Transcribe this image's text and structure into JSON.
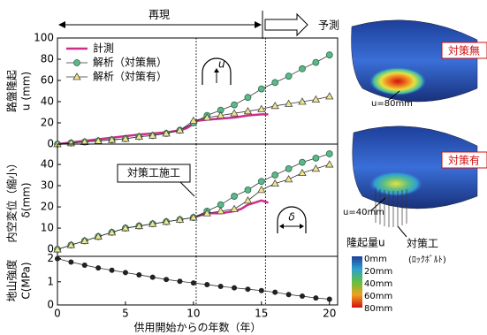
{
  "phase": {
    "reproduce": "再現",
    "predict": "予測"
  },
  "divider_x": [
    10.2,
    15.3
  ],
  "chart_data": [
    {
      "type": "line",
      "ylabel": [
        "路盤隆起",
        "u (mm)"
      ],
      "icon_label": "u",
      "xlim": [
        0,
        20.6
      ],
      "ylim": [
        0,
        100
      ],
      "yticks": [
        0,
        20,
        40,
        60,
        80,
        100
      ],
      "series": [
        {
          "name": "計測",
          "color": "#cc2e8a",
          "marker": "none",
          "x": [
            0,
            2,
            4,
            6,
            8,
            9,
            9.5,
            10,
            10.3,
            11,
            12,
            13,
            14,
            15,
            15.5
          ],
          "values": [
            0,
            3,
            6,
            9,
            11,
            13,
            15,
            19,
            22,
            23,
            24,
            25,
            27,
            28,
            28
          ]
        },
        {
          "name": "解析（対策無）",
          "color": "#5cb88a",
          "marker": "circle",
          "x": [
            0,
            1,
            2,
            3,
            4,
            5,
            6,
            7,
            8,
            9,
            10,
            11,
            12,
            13,
            14,
            15,
            16,
            17,
            18,
            19,
            20
          ],
          "values": [
            0,
            1,
            2,
            3,
            4,
            5,
            7,
            8,
            10,
            13,
            20,
            27,
            32,
            37,
            44,
            52,
            58,
            64,
            71,
            77,
            84
          ]
        },
        {
          "name": "解析（対策有）",
          "color": "#f0e68c",
          "marker": "triangle",
          "x": [
            0,
            1,
            2,
            3,
            4,
            5,
            6,
            7,
            8,
            9,
            10,
            11,
            12,
            13,
            14,
            15,
            16,
            17,
            18,
            19,
            20
          ],
          "values": [
            0,
            1,
            2,
            3,
            4,
            5,
            7,
            8,
            10,
            13,
            22,
            25,
            27,
            29,
            31,
            33,
            36,
            38,
            40,
            42,
            45
          ]
        }
      ]
    },
    {
      "type": "line",
      "ylabel": [
        "内空変位（縮小）",
        "δ(mm)"
      ],
      "icon_label": "δ",
      "annotation": "対策工施工",
      "xlim": [
        0,
        20.6
      ],
      "ylim": [
        -3.3,
        49.6
      ],
      "yticks": [
        0,
        10,
        20,
        30,
        40
      ],
      "series": [
        {
          "color": "#cc2e8a",
          "marker": "none",
          "x": [
            10,
            11,
            12,
            13,
            13.5,
            14,
            14.5,
            15,
            15.5
          ],
          "values": [
            15,
            17,
            17,
            18,
            19,
            21,
            22,
            23,
            22
          ]
        },
        {
          "color": "#5cb88a",
          "marker": "circle",
          "x": [
            0,
            1,
            2,
            3,
            4,
            5,
            6,
            7,
            8,
            9,
            10,
            11,
            12,
            13,
            14,
            15,
            16,
            17,
            18,
            19,
            20
          ],
          "values": [
            0,
            2,
            4,
            6,
            8,
            10,
            11,
            12,
            13,
            14,
            15,
            18,
            21,
            25,
            28,
            32,
            35,
            38,
            41,
            43,
            45
          ]
        },
        {
          "color": "#f0e68c",
          "marker": "triangle",
          "x": [
            0,
            1,
            2,
            3,
            4,
            5,
            6,
            7,
            8,
            9,
            10,
            11,
            12,
            13,
            14,
            15,
            16,
            17,
            18,
            19,
            20
          ],
          "values": [
            0,
            2,
            4,
            6,
            8,
            10,
            11,
            12,
            13,
            14,
            15,
            17,
            18,
            19,
            23,
            28,
            31,
            33,
            36,
            38,
            40
          ]
        }
      ]
    },
    {
      "type": "scatter",
      "ylabel": [
        "地山強度",
        "C(MPa)"
      ],
      "xlabel": "供用開始からの年数（年）",
      "xlim": [
        0,
        20.6
      ],
      "xticks": [
        0,
        5,
        10,
        15,
        20
      ],
      "ylim": [
        0,
        2.1
      ],
      "yticks": [
        0,
        1,
        2
      ],
      "series": [
        {
          "color": "#222222",
          "marker": "dot",
          "x": [
            0,
            1,
            2,
            3,
            4,
            5,
            6,
            7,
            8,
            9,
            10,
            11,
            12,
            13,
            14,
            15,
            16,
            17,
            18,
            19,
            20
          ],
          "values": [
            2,
            1.85,
            1.72,
            1.6,
            1.5,
            1.4,
            1.3,
            1.2,
            1.1,
            1.02,
            0.95,
            0.88,
            0.8,
            0.74,
            0.68,
            0.62,
            0.55,
            0.45,
            0.38,
            0.3,
            0.25
          ]
        }
      ]
    }
  ],
  "figure": {
    "cases": [
      {
        "tag": "対策無",
        "label": "u=80mm"
      },
      {
        "tag": "対策有",
        "label": "u=40mm"
      }
    ],
    "colorbar_title": "隆起量u",
    "colorbar_labels": [
      "0mm",
      "20mm",
      "40mm",
      "60mm",
      "80mm"
    ],
    "bolt_label": [
      "対策工",
      "(ﾛｯｸﾎﾞﾙﾄ)"
    ]
  }
}
